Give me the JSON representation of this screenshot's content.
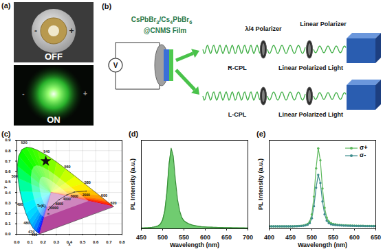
{
  "photos": {
    "label": "(a)",
    "items": [
      {
        "state": "OFF",
        "polarity": [
          "-",
          "+"
        ]
      },
      {
        "state": "ON",
        "polarity": [
          "-",
          "+"
        ]
      }
    ]
  },
  "schematic": {
    "label": "(b)",
    "film": [
      "CsPbBr3/Cs4PbBr6",
      "@CNMS Film"
    ],
    "source": "V",
    "polarizers": [
      "λ/4 Polarizer",
      "Linear Polarizer"
    ],
    "beams": [
      {
        "name": "R-CPL",
        "output": "Linear Polarized Light"
      },
      {
        "name": "L-CPL",
        "output": "Linear Polarized Light"
      }
    ]
  },
  "chart_data": [
    {
      "type": "chromaticity",
      "label": "(c)",
      "xlabel": "x",
      "ylabel": "y",
      "xlim": [
        0,
        0.8
      ],
      "ylim": [
        0,
        0.9
      ],
      "xticks": [
        {
          "value": 0,
          "label": "0.0"
        },
        0.1,
        0.2,
        0.3,
        0.4,
        0.5,
        0.6,
        0.7,
        0.8
      ],
      "yticks": [
        {
          "value": 0,
          "label": "0.0"
        },
        0.1,
        0.2,
        0.3,
        0.4,
        0.5,
        0.6,
        0.7,
        0.8,
        0.9
      ],
      "grid": true,
      "locus": [
        {
          "wavelength": 380,
          "x": 0.1741,
          "y": 0.005
        },
        {
          "wavelength": 420,
          "x": 0.1714,
          "y": 0.0051
        },
        {
          "wavelength": 440,
          "x": 0.1644,
          "y": 0.0109
        },
        {
          "wavelength": 450,
          "x": 0.1566,
          "y": 0.0177
        },
        {
          "wavelength": 460,
          "x": 0.144,
          "y": 0.0297
        },
        {
          "wavelength": 470,
          "x": 0.1241,
          "y": 0.0578
        },
        {
          "wavelength": 475,
          "x": 0.1096,
          "y": 0.0868
        },
        {
          "wavelength": 480,
          "x": 0.0913,
          "y": 0.1327
        },
        {
          "wavelength": 485,
          "x": 0.0687,
          "y": 0.2007
        },
        {
          "wavelength": 490,
          "x": 0.0454,
          "y": 0.295
        },
        {
          "wavelength": 495,
          "x": 0.0235,
          "y": 0.4127
        },
        {
          "wavelength": 500,
          "x": 0.0082,
          "y": 0.5384
        },
        {
          "wavelength": 505,
          "x": 0.0039,
          "y": 0.6548
        },
        {
          "wavelength": 510,
          "x": 0.0139,
          "y": 0.7502
        },
        {
          "wavelength": 515,
          "x": 0.0389,
          "y": 0.812
        },
        {
          "wavelength": 520,
          "x": 0.0743,
          "y": 0.8338
        },
        {
          "wavelength": 525,
          "x": 0.1142,
          "y": 0.8262
        },
        {
          "wavelength": 530,
          "x": 0.1547,
          "y": 0.8059
        },
        {
          "wavelength": 540,
          "x": 0.2296,
          "y": 0.7543
        },
        {
          "wavelength": 550,
          "x": 0.3016,
          "y": 0.6923
        },
        {
          "wavelength": 560,
          "x": 0.3731,
          "y": 0.6245
        },
        {
          "wavelength": 570,
          "x": 0.4441,
          "y": 0.5547
        },
        {
          "wavelength": 580,
          "x": 0.5125,
          "y": 0.4866
        },
        {
          "wavelength": 590,
          "x": 0.5752,
          "y": 0.4242
        },
        {
          "wavelength": 600,
          "x": 0.627,
          "y": 0.3725
        },
        {
          "wavelength": 610,
          "x": 0.6658,
          "y": 0.334
        },
        {
          "wavelength": 620,
          "x": 0.6915,
          "y": 0.3083
        },
        {
          "wavelength": 640,
          "x": 0.719,
          "y": 0.2809
        },
        {
          "wavelength": 700,
          "x": 0.7347,
          "y": 0.2653
        }
      ],
      "locus_labels": [
        460,
        470,
        480,
        490,
        500,
        520,
        540,
        560,
        580,
        600,
        620
      ],
      "planckian": {
        "label": "Tc(K)",
        "points": [
          {
            "label": "∞",
            "x": 0.2399,
            "y": 0.2342
          },
          {
            "label": "10000",
            "x": 0.2807,
            "y": 0.2884
          },
          {
            "label": "6000",
            "x": 0.3221,
            "y": 0.3318
          },
          {
            "label": "4000",
            "x": 0.3805,
            "y": 0.3768
          },
          {
            "label": "3000",
            "x": 0.4369,
            "y": 0.4041
          },
          {
            "label": "2000",
            "x": 0.5267,
            "y": 0.4133
          }
        ]
      },
      "point": {
        "x": 0.22,
        "y": 0.7,
        "marker": "star"
      }
    },
    {
      "type": "area",
      "label": "(d)",
      "xlabel": "Wavelength (nm)",
      "ylabel": "PL Intensity (a.u.)",
      "xlim": [
        450,
        700
      ],
      "ylim": [
        0,
        1.1
      ],
      "xticks": [
        450,
        500,
        550,
        600,
        650,
        700
      ],
      "tick_labels": "x",
      "color": "#4cbf4c",
      "x": [
        450,
        455,
        460,
        465,
        470,
        475,
        480,
        485,
        490,
        495,
        500,
        505,
        510,
        515,
        520,
        525,
        530,
        535,
        540,
        545,
        550,
        555,
        560,
        565,
        570,
        575,
        580,
        585,
        590,
        595,
        600,
        605,
        610,
        615,
        620,
        625,
        630,
        635,
        640,
        645,
        650,
        655,
        660,
        665,
        670,
        675,
        680,
        685,
        690,
        695,
        700
      ],
      "values": [
        0.01,
        0.01,
        0.012,
        0.013,
        0.015,
        0.018,
        0.022,
        0.028,
        0.038,
        0.06,
        0.11,
        0.22,
        0.45,
        0.8,
        1,
        0.9,
        0.6,
        0.36,
        0.22,
        0.14,
        0.1,
        0.08,
        0.065,
        0.055,
        0.045,
        0.04,
        0.035,
        0.03,
        0.027,
        0.025,
        0.023,
        0.021,
        0.02,
        0.019,
        0.018,
        0.017,
        0.016,
        0.015,
        0.015,
        0.014,
        0.014,
        0.013,
        0.013,
        0.012,
        0.012,
        0.012,
        0.011,
        0.011,
        0.011,
        0.01,
        0.01
      ]
    },
    {
      "type": "line",
      "label": "(e)",
      "xlabel": "Wavelength (nm)",
      "ylabel": "PL Intensity (a.u.)",
      "xlim": [
        400,
        650
      ],
      "ylim": [
        0,
        1.1
      ],
      "xticks": [
        400,
        450,
        500,
        550,
        600,
        650
      ],
      "tick_labels": "x",
      "legend": "top-right",
      "marker": "circle",
      "x": [
        400,
        405,
        410,
        415,
        420,
        425,
        430,
        435,
        440,
        445,
        450,
        455,
        460,
        465,
        470,
        475,
        480,
        485,
        490,
        495,
        500,
        505,
        510,
        515,
        520,
        525,
        530,
        535,
        540,
        545,
        550,
        555,
        560,
        565,
        570,
        575,
        580,
        585,
        590,
        595,
        600,
        605,
        610,
        615,
        620,
        625,
        630,
        635,
        640,
        645,
        650
      ],
      "series": [
        {
          "name": "σ+",
          "color": "#5cb85c",
          "values": [
            0.03,
            0.03,
            0.03,
            0.03,
            0.03,
            0.03,
            0.03,
            0.03,
            0.03,
            0.03,
            0.03,
            0.03,
            0.032,
            0.033,
            0.035,
            0.037,
            0.04,
            0.047,
            0.06,
            0.09,
            0.18,
            0.4,
            0.75,
            1,
            0.85,
            0.5,
            0.26,
            0.14,
            0.09,
            0.07,
            0.06,
            0.055,
            0.05,
            0.047,
            0.045,
            0.043,
            0.042,
            0.04,
            0.04,
            0.039,
            0.038,
            0.037,
            0.037,
            0.036,
            0.036,
            0.035,
            0.035,
            0.035,
            0.034,
            0.034,
            0.034
          ]
        },
        {
          "name": "σ-",
          "color": "#3d8c8c",
          "values": [
            0.03,
            0.03,
            0.03,
            0.03,
            0.03,
            0.03,
            0.03,
            0.03,
            0.03,
            0.03,
            0.03,
            0.03,
            0.031,
            0.032,
            0.033,
            0.035,
            0.037,
            0.042,
            0.05,
            0.07,
            0.13,
            0.28,
            0.51,
            0.67,
            0.57,
            0.34,
            0.18,
            0.1,
            0.07,
            0.055,
            0.05,
            0.047,
            0.044,
            0.042,
            0.04,
            0.039,
            0.038,
            0.037,
            0.036,
            0.036,
            0.035,
            0.035,
            0.034,
            0.034,
            0.034,
            0.033,
            0.033,
            0.033,
            0.033,
            0.032,
            0.032
          ]
        }
      ]
    }
  ]
}
